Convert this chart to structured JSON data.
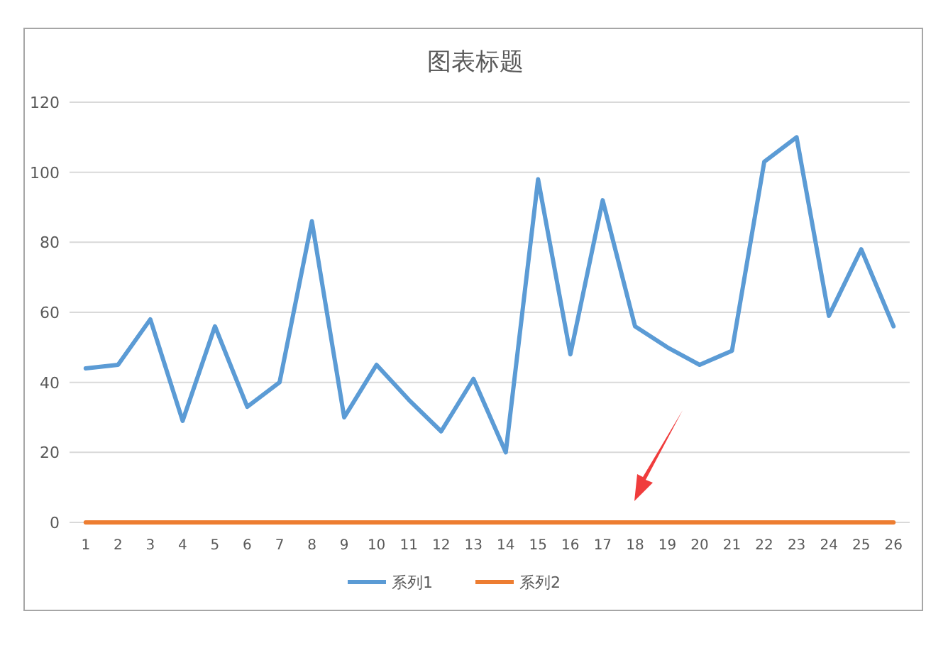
{
  "chart_data": {
    "type": "line",
    "title": "图表标题",
    "categories": [
      "1",
      "2",
      "3",
      "4",
      "5",
      "6",
      "7",
      "8",
      "9",
      "10",
      "11",
      "12",
      "13",
      "14",
      "15",
      "16",
      "17",
      "18",
      "19",
      "20",
      "21",
      "22",
      "23",
      "24",
      "25",
      "26"
    ],
    "series": [
      {
        "name": "系列1",
        "color": "#5b9bd5",
        "values": [
          44,
          45,
          58,
          29,
          56,
          33,
          40,
          86,
          30,
          45,
          35,
          26,
          41,
          20,
          98,
          48,
          92,
          56,
          50,
          45,
          49,
          103,
          110,
          59,
          78,
          56
        ]
      },
      {
        "name": "系列2",
        "color": "#ed7d31",
        "values": [
          0,
          0,
          0,
          0,
          0,
          0,
          0,
          0,
          0,
          0,
          0,
          0,
          0,
          0,
          0,
          0,
          0,
          0,
          0,
          0,
          0,
          0,
          0,
          0,
          0,
          0
        ]
      }
    ],
    "ylim": [
      0,
      120
    ],
    "yticks": [
      0,
      20,
      40,
      60,
      80,
      100,
      120
    ],
    "grid": "y",
    "legend": "bottom",
    "marker": "none",
    "line_style": "solid"
  }
}
